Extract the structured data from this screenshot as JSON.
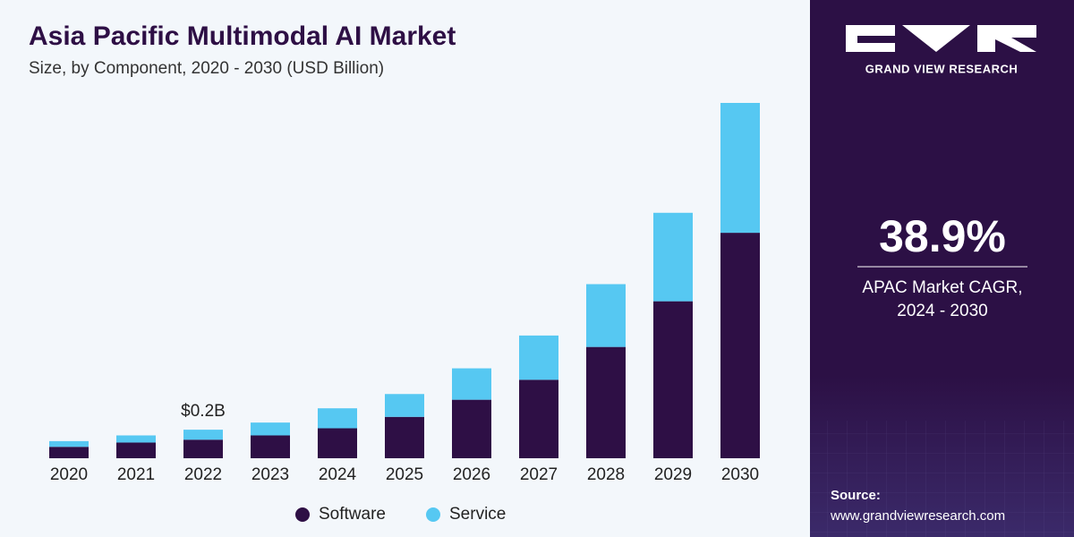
{
  "chart_data": {
    "type": "stacked_bar",
    "title": "Asia Pacific Multimodal AI Market",
    "subtitle": "Size, by Component, 2020 - 2030 (USD Billion)",
    "categories": [
      "2020",
      "2021",
      "2022",
      "2023",
      "2024",
      "2025",
      "2026",
      "2027",
      "2028",
      "2029",
      "2030"
    ],
    "series": [
      {
        "name": "Software",
        "color": "#2e0f45",
        "values": [
          0.08,
          0.11,
          0.13,
          0.16,
          0.21,
          0.29,
          0.41,
          0.55,
          0.78,
          1.1,
          1.58
        ]
      },
      {
        "name": "Service",
        "color": "#56c8f2",
        "values": [
          0.04,
          0.05,
          0.07,
          0.09,
          0.14,
          0.16,
          0.22,
          0.31,
          0.44,
          0.62,
          0.91
        ]
      }
    ],
    "annotations": [
      {
        "category_index": 2,
        "value": 0.2,
        "label": "$0.2B"
      }
    ],
    "legend": "bottom"
  },
  "sidebar": {
    "brand": "GRAND VIEW RESEARCH",
    "stat": "38.9%",
    "stat_caption": [
      "APAC Market CAGR,",
      "2024 - 2030"
    ],
    "source_label": "Source:",
    "source_url": "www.grandviewresearch.com"
  }
}
